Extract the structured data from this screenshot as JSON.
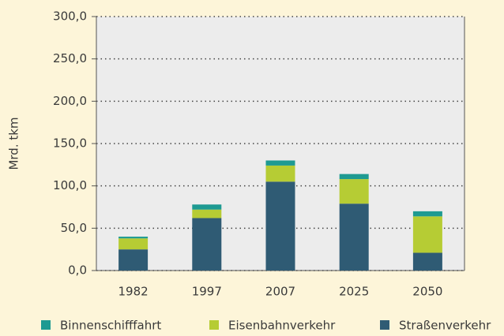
{
  "chart_data": {
    "type": "stacked_bar",
    "y_label": "Mrd. tkm",
    "categories": [
      "1982",
      "1997",
      "2007",
      "2025",
      "2050"
    ],
    "series": [
      {
        "name": "Binnenschifffahrt",
        "color": "#1e9a92",
        "values": [
          2,
          6,
          6,
          6,
          6
        ]
      },
      {
        "name": "Eisenbahnverkehr",
        "color": "#b6cc34",
        "values": [
          13,
          10,
          19,
          29,
          43
        ]
      },
      {
        "name": "Straßenverkehr",
        "color": "#2f5b74",
        "values": [
          25,
          62,
          105,
          79,
          21
        ]
      }
    ],
    "ylim": [
      0,
      300
    ],
    "yticks": [
      {
        "value": 0,
        "label": "0,0"
      },
      {
        "value": 50,
        "label": "50,0"
      },
      {
        "value": 100,
        "label": "100,0"
      },
      {
        "value": 150,
        "label": "150,0"
      },
      {
        "value": 200,
        "label": "200,0"
      },
      {
        "value": 250,
        "label": "250,0"
      },
      {
        "value": 300,
        "label": "300,0"
      }
    ],
    "grid": true
  }
}
